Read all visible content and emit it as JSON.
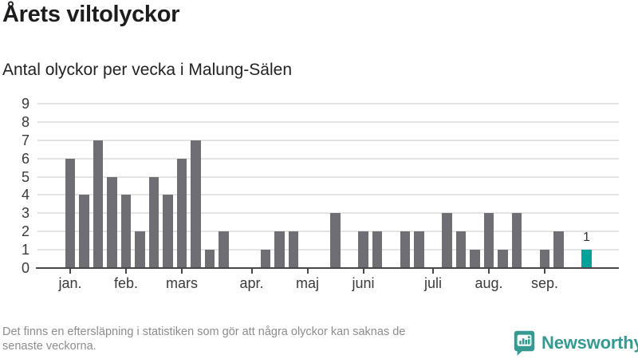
{
  "header": {
    "title": "Årets viltolyckor",
    "subtitle": "Antal olyckor per vecka i Malung-Sälen"
  },
  "chart_data": {
    "type": "bar",
    "title": "Årets viltolyckor",
    "subtitle": "Antal olyckor per vecka i Malung-Sälen",
    "x_unit": "vecka",
    "values": [
      6,
      4,
      7,
      5,
      4,
      2,
      5,
      4,
      6,
      7,
      1,
      2,
      0,
      0,
      1,
      2,
      2,
      0,
      0,
      3,
      0,
      2,
      2,
      0,
      2,
      2,
      0,
      3,
      2,
      1,
      3,
      1,
      3,
      0,
      1,
      2,
      0,
      1
    ],
    "highlight_index": 37,
    "highlight_label": "1",
    "y_ticks": [
      0,
      1,
      2,
      3,
      4,
      5,
      6,
      7,
      8,
      9
    ],
    "ylim": [
      0,
      9
    ],
    "x_tick_positions": [
      0,
      4,
      8,
      13,
      17,
      21,
      26,
      30,
      34
    ],
    "x_tick_labels": [
      "jan.",
      "feb.",
      "mars",
      "apr.",
      "maj",
      "juni",
      "juli",
      "aug.",
      "sep."
    ],
    "grid": true,
    "legend": "none",
    "bar_color": "#6e6e74",
    "highlight_color": "#00a09b"
  },
  "footer": {
    "note_lines": [
      "Det finns en eftersläpning i statistiken som gör att några olyckor kan saknas de",
      "senaste veckorna."
    ],
    "brand": "Newsworthy",
    "brand_color": "#369a92",
    "logo_icon": "bar-chart-speech-bubble"
  }
}
